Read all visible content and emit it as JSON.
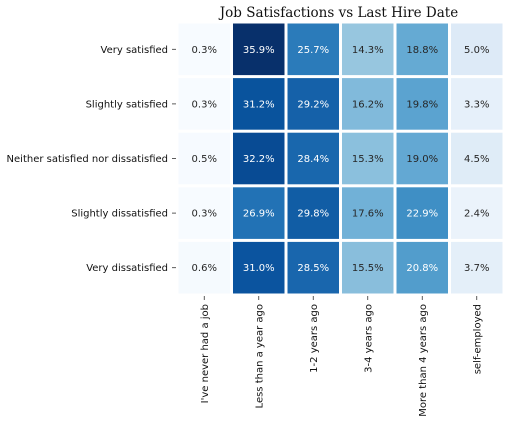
{
  "chart_data": {
    "type": "heatmap",
    "title": "Job Satisfactions vs Last Hire Date",
    "rows": [
      "Very satisfied",
      "Slightly satisfied",
      "Neither satisfied nor dissatisfied",
      "Slightly dissatisfied",
      "Very dissatisfied"
    ],
    "columns": [
      "I've never had a job",
      "Less than a year ago",
      "1-2 years ago",
      "3-4 years ago",
      "More than 4 years ago",
      "self-employed"
    ],
    "values": [
      [
        0.3,
        35.9,
        25.7,
        14.3,
        18.8,
        5.0
      ],
      [
        0.3,
        31.2,
        29.2,
        16.2,
        19.8,
        3.3
      ],
      [
        0.5,
        32.2,
        28.4,
        15.3,
        19.0,
        4.5
      ],
      [
        0.3,
        26.9,
        29.8,
        17.6,
        22.9,
        2.4
      ],
      [
        0.6,
        31.0,
        28.5,
        15.5,
        20.8,
        3.7
      ]
    ],
    "labels": [
      [
        "0.3%",
        "35.9%",
        "25.7%",
        "14.3%",
        "18.8%",
        "5.0%"
      ],
      [
        "0.3%",
        "31.2%",
        "29.2%",
        "16.2%",
        "19.8%",
        "3.3%"
      ],
      [
        "0.5%",
        "32.2%",
        "28.4%",
        "15.3%",
        "19.0%",
        "4.5%"
      ],
      [
        "0.3%",
        "26.9%",
        "29.8%",
        "17.6%",
        "22.9%",
        "2.4%"
      ],
      [
        "0.6%",
        "31.0%",
        "28.5%",
        "15.5%",
        "20.8%",
        "3.7%"
      ]
    ],
    "colormap": "Blues",
    "value_range": [
      0.3,
      35.9
    ],
    "gridlines": false,
    "legend": "none"
  }
}
